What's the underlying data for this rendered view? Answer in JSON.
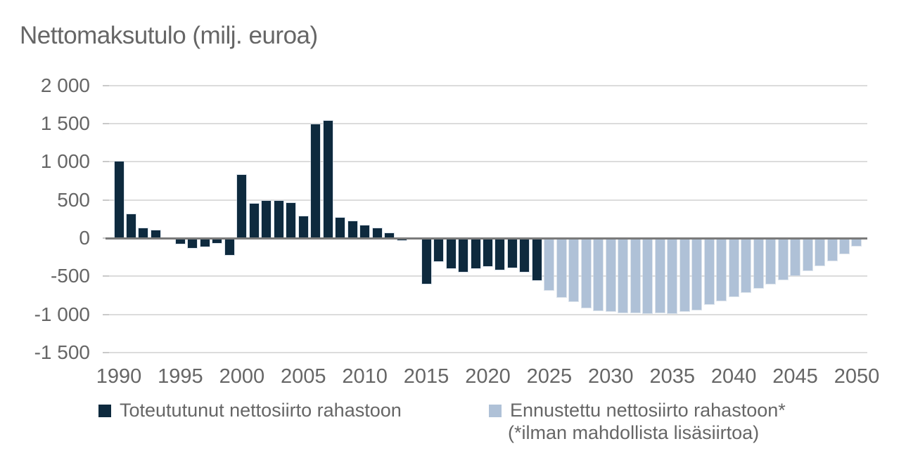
{
  "title": "Nettomaksutulo (milj. euroa)",
  "colors": {
    "actual_bar": "#0e2a3e",
    "forecast_bar": "#afc1d7",
    "text": "#666666",
    "gridline": "#dcdcdc",
    "zero_line": "#7a7a7a",
    "background": "#ffffff"
  },
  "chart_data": {
    "type": "bar",
    "title": "Nettomaksutulo (milj. euroa)",
    "xlabel": "",
    "ylabel": "milj. euroa",
    "ylim": [
      -1500,
      2000
    ],
    "grid": true,
    "legend_position": "bottom",
    "x_start": 1990,
    "x_end": 2050,
    "y_ticks": [
      2000,
      1500,
      1000,
      500,
      0,
      -500,
      -1000,
      -1500
    ],
    "y_tick_labels": [
      "2 000",
      "1 500",
      "1 000",
      "500",
      "0",
      "-500",
      "-1 000",
      "-1 500"
    ],
    "x_ticks": [
      1990,
      1995,
      2000,
      2005,
      2010,
      2015,
      2020,
      2025,
      2030,
      2035,
      2040,
      2045,
      2050
    ],
    "series": [
      {
        "name": "Toteututunut nettosiirto rahastoon",
        "color": "#0e2a3e",
        "year_start": 1990,
        "values": [
          1000,
          310,
          130,
          100,
          0,
          -70,
          -130,
          -110,
          -60,
          -225,
          825,
          450,
          490,
          490,
          465,
          285,
          1490,
          1540,
          270,
          220,
          170,
          130,
          60,
          -30,
          0,
          -600,
          -300,
          -395,
          -440,
          -395,
          -370,
          -415,
          -390,
          -440,
          -555
        ]
      },
      {
        "name": "Ennustettu nettosiirto rahastoon*",
        "color": "#afc1d7",
        "year_start": 2025,
        "values": [
          -680,
          -775,
          -830,
          -915,
          -950,
          -960,
          -975,
          -980,
          -985,
          -980,
          -985,
          -955,
          -935,
          -870,
          -820,
          -760,
          -705,
          -655,
          -600,
          -545,
          -490,
          -425,
          -360,
          -295,
          -205,
          -105
        ]
      }
    ],
    "footnote": "(*ilman mahdollista lisäsiirtoa)"
  }
}
